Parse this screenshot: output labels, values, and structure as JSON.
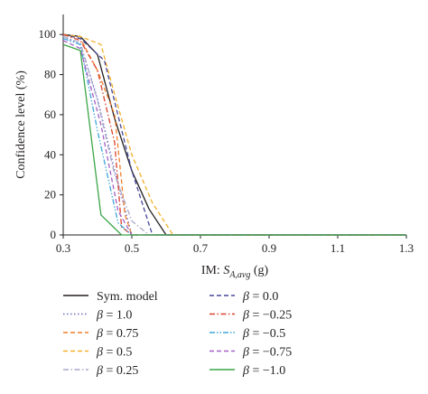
{
  "chart_data": {
    "type": "line",
    "title": "",
    "xlabel": "IM: S_A,avg (g)",
    "xlabel_parts": {
      "prefix": "IM: ",
      "symbol": "S",
      "subscript": "A,avg",
      "suffix": " (g)"
    },
    "ylabel": "Confidence level (%)",
    "xlim": [
      0.3,
      1.3
    ],
    "ylim": [
      0,
      110
    ],
    "xticks": [
      "0.3",
      "0.5",
      "0.7",
      "0.9",
      "1.1",
      "1.3"
    ],
    "yticks": [
      "0",
      "20",
      "40",
      "60",
      "80",
      "100"
    ],
    "grid": false,
    "legend_position": "bottom, two columns",
    "series": [
      {
        "name": "Sym. model",
        "color": "#231f20",
        "dash": "solid",
        "x": [
          0.3,
          0.35,
          0.4,
          0.45,
          0.5,
          0.55,
          0.6,
          1.3
        ],
        "y": [
          100,
          99,
          90,
          58,
          32,
          13,
          0,
          0
        ]
      },
      {
        "name": "β = 1.0",
        "color": "#6b68c3",
        "dash": "dotted",
        "x": [
          0.3,
          0.35,
          0.4,
          0.45,
          0.5,
          1.3
        ],
        "y": [
          99,
          95,
          68,
          32,
          0,
          0
        ]
      },
      {
        "name": "β = 0.75",
        "color": "#f07f2c",
        "dash": "dashed",
        "x": [
          0.3,
          0.35,
          0.4,
          0.45,
          0.48,
          0.5,
          1.3
        ],
        "y": [
          100,
          98,
          82,
          60,
          10,
          0,
          0
        ]
      },
      {
        "name": "β = 0.5",
        "color": "#f2b02a",
        "dash": "dashed",
        "x": [
          0.3,
          0.35,
          0.41,
          0.45,
          0.5,
          0.56,
          0.62,
          1.3
        ],
        "y": [
          100,
          99,
          95,
          70,
          40,
          16,
          0,
          0
        ]
      },
      {
        "name": "β = 0.25",
        "color": "#a9a9c9",
        "dash": "dashdot",
        "x": [
          0.3,
          0.35,
          0.4,
          0.45,
          0.5,
          0.55,
          1.3
        ],
        "y": [
          99,
          96,
          67,
          30,
          7,
          0,
          0
        ]
      },
      {
        "name": "β = 0.0",
        "color": "#46479a",
        "dash": "dashed",
        "x": [
          0.3,
          0.35,
          0.42,
          0.5,
          0.56,
          1.3
        ],
        "y": [
          100,
          98,
          87,
          32,
          0,
          0
        ]
      },
      {
        "name": "β = −0.25",
        "color": "#d9432c",
        "dash": "dashdot",
        "x": [
          0.3,
          0.35,
          0.4,
          0.45,
          0.47,
          0.5,
          1.3
        ],
        "y": [
          100,
          97,
          82,
          46,
          4,
          0,
          0
        ]
      },
      {
        "name": "β = −0.5",
        "color": "#3ea6d9",
        "dash": "dashdotdot",
        "x": [
          0.3,
          0.35,
          0.4,
          0.46,
          0.5,
          1.3
        ],
        "y": [
          98,
          95,
          52,
          6,
          0,
          0
        ]
      },
      {
        "name": "β = −0.75",
        "color": "#a45fc4",
        "dash": "dashed",
        "x": [
          0.3,
          0.35,
          0.41,
          0.46,
          0.5,
          1.3
        ],
        "y": [
          97,
          93,
          55,
          12,
          0,
          0
        ]
      },
      {
        "name": "β = −1.0",
        "color": "#3aa546",
        "dash": "solid",
        "x": [
          0.3,
          0.35,
          0.41,
          0.47,
          1.3
        ],
        "y": [
          95,
          92,
          10,
          0,
          0
        ]
      }
    ]
  }
}
